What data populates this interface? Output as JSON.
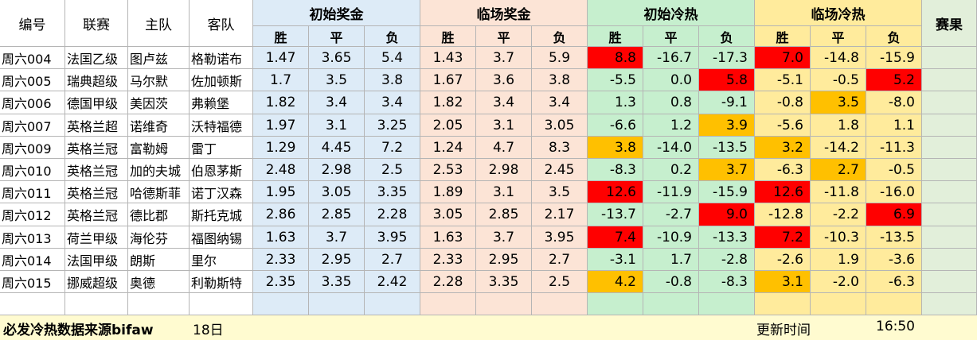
{
  "header": {
    "id": "编号",
    "league": "联赛",
    "home": "主队",
    "away": "客队",
    "groups": [
      "初始奖金",
      "临场奖金",
      "初始冷热",
      "临场冷热"
    ],
    "sub": [
      "胜",
      "平",
      "负"
    ],
    "result": "赛果"
  },
  "rows": [
    {
      "id": "周六004",
      "league": "法国乙级",
      "home": "图卢兹",
      "away": "格勒诺布",
      "ib": [
        "1.47",
        "3.65",
        "5.4"
      ],
      "lb": [
        "1.43",
        "3.7",
        "5.9"
      ],
      "ih": [
        "8.8",
        "-16.7",
        "-17.3"
      ],
      "lh": [
        "7.0",
        "-14.8",
        "-15.9"
      ]
    },
    {
      "id": "周六005",
      "league": "瑞典超级",
      "home": "马尔默",
      "away": "佐加顿斯",
      "ib": [
        "1.7",
        "3.5",
        "3.8"
      ],
      "lb": [
        "1.67",
        "3.6",
        "3.8"
      ],
      "ih": [
        "-5.5",
        "0.0",
        "5.8"
      ],
      "lh": [
        "-5.1",
        "-0.5",
        "5.2"
      ]
    },
    {
      "id": "周六006",
      "league": "德国甲级",
      "home": "美因茨",
      "away": "弗赖堡",
      "ib": [
        "1.82",
        "3.4",
        "3.4"
      ],
      "lb": [
        "1.82",
        "3.4",
        "3.4"
      ],
      "ih": [
        "1.3",
        "0.8",
        "-9.1"
      ],
      "lh": [
        "-0.8",
        "3.5",
        "-8.0"
      ]
    },
    {
      "id": "周六007",
      "league": "英格兰超",
      "home": "诺维奇",
      "away": "沃特福德",
      "ib": [
        "1.97",
        "3.1",
        "3.25"
      ],
      "lb": [
        "2.05",
        "3.1",
        "3.05"
      ],
      "ih": [
        "-6.6",
        "1.2",
        "3.9"
      ],
      "lh": [
        "-5.6",
        "1.8",
        "1.1"
      ]
    },
    {
      "id": "周六009",
      "league": "英格兰冠",
      "home": "富勒姆",
      "away": "雷丁",
      "ib": [
        "1.29",
        "4.45",
        "7.2"
      ],
      "lb": [
        "1.24",
        "4.7",
        "8.3"
      ],
      "ih": [
        "3.8",
        "-14.0",
        "-13.5"
      ],
      "lh": [
        "3.2",
        "-14.2",
        "-11.3"
      ]
    },
    {
      "id": "周六010",
      "league": "英格兰冠",
      "home": "加的夫城",
      "away": "伯恩茅斯",
      "ib": [
        "2.48",
        "2.98",
        "2.5"
      ],
      "lb": [
        "2.53",
        "2.98",
        "2.45"
      ],
      "ih": [
        "-8.3",
        "0.2",
        "3.7"
      ],
      "lh": [
        "-6.3",
        "2.7",
        "-0.5"
      ]
    },
    {
      "id": "周六011",
      "league": "英格兰冠",
      "home": "哈德斯菲",
      "away": "诺丁汉森",
      "ib": [
        "1.95",
        "3.05",
        "3.35"
      ],
      "lb": [
        "1.89",
        "3.1",
        "3.5"
      ],
      "ih": [
        "12.6",
        "-11.9",
        "-15.9"
      ],
      "lh": [
        "12.6",
        "-11.8",
        "-16.0"
      ]
    },
    {
      "id": "周六012",
      "league": "英格兰冠",
      "home": "德比郡",
      "away": "斯托克城",
      "ib": [
        "2.86",
        "2.85",
        "2.28"
      ],
      "lb": [
        "3.05",
        "2.85",
        "2.17"
      ],
      "ih": [
        "-13.7",
        "-2.7",
        "9.0"
      ],
      "lh": [
        "-12.8",
        "-2.2",
        "6.9"
      ]
    },
    {
      "id": "周六013",
      "league": "荷兰甲级",
      "home": "海伦芬",
      "away": "福图纳锡",
      "ib": [
        "1.63",
        "3.7",
        "3.95"
      ],
      "lb": [
        "1.63",
        "3.7",
        "3.95"
      ],
      "ih": [
        "7.4",
        "-10.9",
        "-13.3"
      ],
      "lh": [
        "7.2",
        "-10.3",
        "-13.5"
      ]
    },
    {
      "id": "周六014",
      "league": "法国甲级",
      "home": "朗斯",
      "away": "里尔",
      "ib": [
        "2.33",
        "2.95",
        "2.7"
      ],
      "lb": [
        "2.33",
        "2.95",
        "2.7"
      ],
      "ih": [
        "-3.1",
        "1.7",
        "-2.8"
      ],
      "lh": [
        "-2.6",
        "1.9",
        "-3.6"
      ]
    },
    {
      "id": "周六015",
      "league": "挪威超级",
      "home": "奥德",
      "away": "利勒斯特",
      "ib": [
        "2.35",
        "3.35",
        "2.42"
      ],
      "lb": [
        "2.28",
        "3.35",
        "2.5"
      ],
      "ih": [
        "4.2",
        "-0.8",
        "-8.3"
      ],
      "lh": [
        "3.1",
        "-2.0",
        "-6.3"
      ]
    }
  ],
  "colors": {
    "initial_bonus_bg": "#ddebf7",
    "live_bonus_bg": "#fce4d6",
    "initial_heat_bg": "#c6efce",
    "live_heat_bg": "#ffeb9c",
    "result_bg": "#e2efda",
    "hot_red": "#ff0000",
    "warm_orange": "#ffc000",
    "footer_bg": "#fffbd0"
  },
  "highlights": {
    "ih": [
      [
        "red",
        null,
        null
      ],
      [
        null,
        null,
        "red"
      ],
      [
        null,
        null,
        null
      ],
      [
        null,
        null,
        "orange"
      ],
      [
        "orange",
        null,
        null
      ],
      [
        null,
        null,
        "orange"
      ],
      [
        "red",
        null,
        null
      ],
      [
        null,
        null,
        "red"
      ],
      [
        "red",
        null,
        null
      ],
      [
        null,
        null,
        null
      ],
      [
        "orange",
        null,
        null
      ]
    ],
    "lh": [
      [
        "red",
        null,
        null
      ],
      [
        null,
        null,
        "red"
      ],
      [
        null,
        "orange",
        null
      ],
      [
        null,
        null,
        null
      ],
      [
        "orange",
        null,
        null
      ],
      [
        null,
        "orange",
        null
      ],
      [
        "red",
        null,
        null
      ],
      [
        null,
        null,
        "red"
      ],
      [
        "red",
        null,
        null
      ],
      [
        null,
        null,
        null
      ],
      [
        "orange",
        null,
        null
      ]
    ]
  },
  "footer": {
    "source": "必发冷热数据来源bifaw",
    "date": "18日",
    "update_label": "更新时间",
    "update_time": "16:50"
  }
}
